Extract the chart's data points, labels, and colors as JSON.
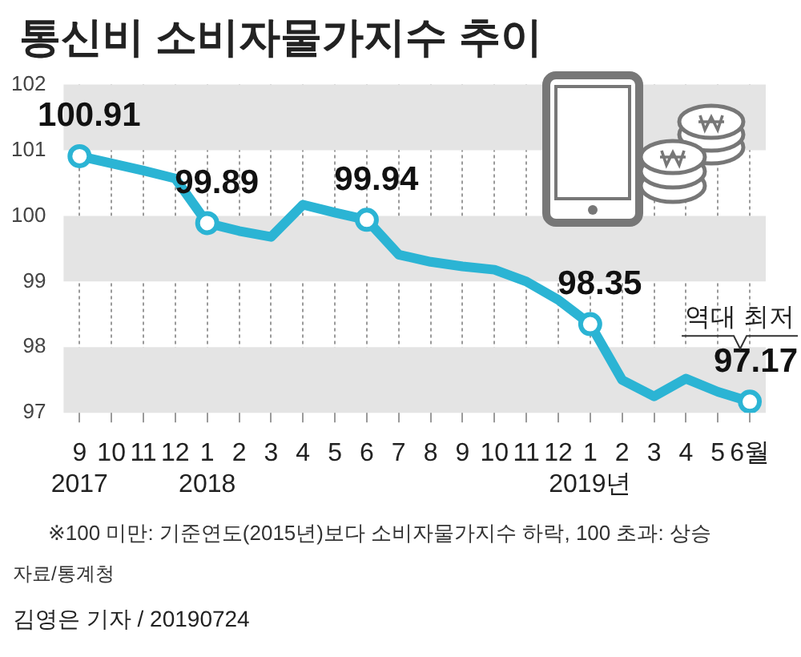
{
  "chart_data": {
    "type": "line",
    "title": "통신비 소비자물가지수 추이",
    "categories": [
      "9\n2017",
      "10",
      "11",
      "12",
      "1\n2018",
      "2",
      "3",
      "4",
      "5",
      "6",
      "7",
      "8",
      "9",
      "10",
      "11",
      "12",
      "1\n2019년",
      "2",
      "3",
      "4",
      "5",
      "6월"
    ],
    "series": [
      {
        "color": "#2bb4d4",
        "values": [
          100.91,
          100.8,
          100.69,
          100.57,
          99.89,
          99.77,
          99.68,
          100.17,
          100.05,
          99.94,
          99.41,
          99.3,
          99.23,
          99.18,
          99.0,
          98.72,
          98.35,
          97.5,
          97.25,
          97.52,
          97.32,
          97.17
        ],
        "value_labels": [
          "100.91",
          null,
          null,
          null,
          "99.89",
          null,
          null,
          null,
          null,
          "99.94",
          null,
          null,
          null,
          null,
          null,
          null,
          "98.35",
          null,
          null,
          null,
          null,
          "97.17"
        ]
      }
    ],
    "ylim": [
      97,
      102
    ],
    "yticks": [
      97,
      98,
      99,
      100,
      101,
      102
    ],
    "grid": true,
    "legend": false,
    "line_style": "solid",
    "annotations": [
      {
        "text": "역대 최저",
        "x": "6월",
        "y": 97.17
      },
      "※100 미만: 기준연도(2015년)보다 소비자물가지수 하락, 100 초과: 상승",
      "자료/통계청",
      "김영은 기자 / 20190724"
    ]
  }
}
